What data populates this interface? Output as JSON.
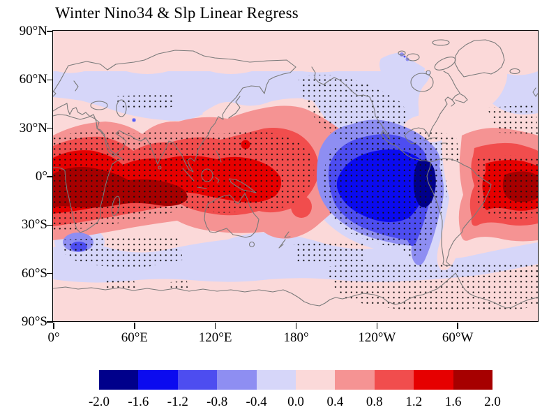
{
  "figure": {
    "title": "Winter Nino34 & Slp Linear Regress"
  },
  "axes": {
    "lat_labels": [
      "90°N",
      "60°N",
      "30°N",
      "0°",
      "30°S",
      "60°S",
      "90°S"
    ],
    "lon_labels": [
      "0°",
      "60°E",
      "120°E",
      "180°",
      "120°W",
      "60°W"
    ]
  },
  "colorbar": {
    "tick_labels": [
      "-2.0",
      "-1.6",
      "-1.2",
      "-0.8",
      "-0.4",
      "0.0",
      "0.4",
      "0.8",
      "1.2",
      "1.6",
      "2.0"
    ],
    "colors": [
      "#00008B",
      "#0B0BEF",
      "#4D4DF0",
      "#8E8EF2",
      "#D6D6F9",
      "#FBD9D9",
      "#F59393",
      "#F14D4D",
      "#E60000",
      "#A60000"
    ]
  },
  "chart_data": {
    "type": "heatmap",
    "subtype": "filled-contour world map (linear regression field with stippling)",
    "title": "Winter Nino34 & Slp Linear Regress",
    "projection": "equirectangular, longitude 0°→360°E (left to right), latitude 90°N→90°S (top to bottom)",
    "x_tick_labels": [
      "0°",
      "60°E",
      "120°E",
      "180°",
      "120°W",
      "60°W"
    ],
    "x_tick_lon_deg_east": [
      0,
      60,
      120,
      180,
      240,
      300
    ],
    "y_tick_labels": [
      "90°N",
      "60°N",
      "30°N",
      "0°",
      "30°S",
      "60°S",
      "90°S"
    ],
    "y_tick_lat_deg": [
      90,
      60,
      30,
      0,
      -30,
      -60,
      -90
    ],
    "contour_levels": [
      -2.0,
      -1.6,
      -1.2,
      -0.8,
      -0.4,
      0.0,
      0.4,
      0.8,
      1.2,
      1.6,
      2.0
    ],
    "palette_low_to_high": [
      "#00008B",
      "#0B0BEF",
      "#4D4DF0",
      "#8E8EF2",
      "#D6D6F9",
      "#FBD9D9",
      "#F59393",
      "#F14D4D",
      "#E60000",
      "#A60000"
    ],
    "colorbar_range": [
      -2.0,
      2.0
    ],
    "legend_position": "horizontal colorbar, bottom center",
    "grid": false,
    "coastlines": "gray outlines over filled field",
    "features": [
      {
        "name": "strong negative center",
        "region": "eastern tropical Pacific, ~170°W–75°W, 15°N–30°S",
        "value": "-1.2 to -2.0, navy core < -1.6 near 100°W–80°W, 0°–15°S, hugging South American coast"
      },
      {
        "name": "strong positive band",
        "region": "Africa / Indian Ocean / western Pacific, ~0°–170°E, 30°N–35°S",
        "value": "0.8 to 2.0, dark-red cores > 1.6 over southern Africa and western Indian Ocean (0°–40°E, 0°–20°S)"
      },
      {
        "name": "positive center",
        "region": "equatorial Atlantic, ~40°W–0°, 10°N–25°S",
        "value": "1.2 to 2.0, dark-red core > 1.6 near 25°W–5°W at the equator"
      },
      {
        "name": "weak negative bands",
        "region": "northern mid/high latitudes (~40°N–72°N across Eurasia and North Pacific/North America) and Southern Ocean (~42°S–65°S)",
        "value": "-0.4 to 0.0 (pale lavender)"
      },
      {
        "name": "weak positive caps",
        "region": "Arctic cap, Greenland/NE Canada wedge, Europe–Mideast strip, Antarctica and remaining oceans",
        "value": "0.0 to 0.4 (pale pink)"
      },
      {
        "name": "small negative patch",
        "region": "southwest of South Africa, ~5°E–25°E, 38°S–50°S",
        "value": "-0.4 to -1.2"
      },
      {
        "name": "stippled regions (black dots)",
        "region": "tropical Africa–Indian Ocean–west Pacific band; eastern Pacific blue center; North Pacific/western North America; central Asia; equatorial Atlantic; Labrador–North Atlantic; south of Africa; south of New Zealand; Antarctic sector ~180°–20°W",
        "value": "dot overlay marking highlighted (significant) areas"
      }
    ]
  }
}
